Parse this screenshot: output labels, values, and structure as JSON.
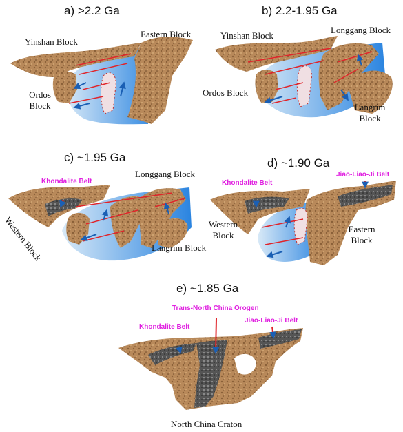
{
  "panels": {
    "a": {
      "title": "a) >2.2 Ga",
      "labels": {
        "yinshan": "Yinshan Block",
        "eastern": "Eastern Block",
        "ordos_1": "Ordos",
        "ordos_2": "Block"
      }
    },
    "b": {
      "title": "b) 2.2-1.95 Ga",
      "labels": {
        "yinshan": "Yinshan Block",
        "longgang": "Longgang Block",
        "ordos": "Ordos Block",
        "langrim_1": "Langrim",
        "langrim_2": "Block"
      }
    },
    "c": {
      "title": "c) ~1.95 Ga",
      "labels": {
        "khondalite": "Khondalite Belt",
        "longgang": "Longgang Block",
        "western": "Western Block",
        "langrim": "Langrim Block"
      }
    },
    "d": {
      "title": "d) ~1.90 Ga",
      "labels": {
        "khondalite": "Khondalite Belt",
        "jiao": "Jiao-Liao-Ji Belt",
        "western_1": "Western",
        "western_2": "Block",
        "eastern_1": "Eastern",
        "eastern_2": "Block"
      }
    },
    "e": {
      "title": "e) ~1.85 Ga",
      "labels": {
        "trans": "Trans-North China Orogen",
        "khondalite": "Khondalite Belt",
        "jiao": "Jiao-Liao-Ji Belt",
        "craton": "North China Craton"
      }
    }
  },
  "colors": {
    "land": "#b8895a",
    "land_dark": "#7a5230",
    "ocean_light": "#cfe4f5",
    "ocean_deep": "#1f78d8",
    "orogen": "#4a4a4a",
    "fault": "#e0242a",
    "arrow": "#1a5fb4",
    "label_highlight": "#e020e0"
  }
}
